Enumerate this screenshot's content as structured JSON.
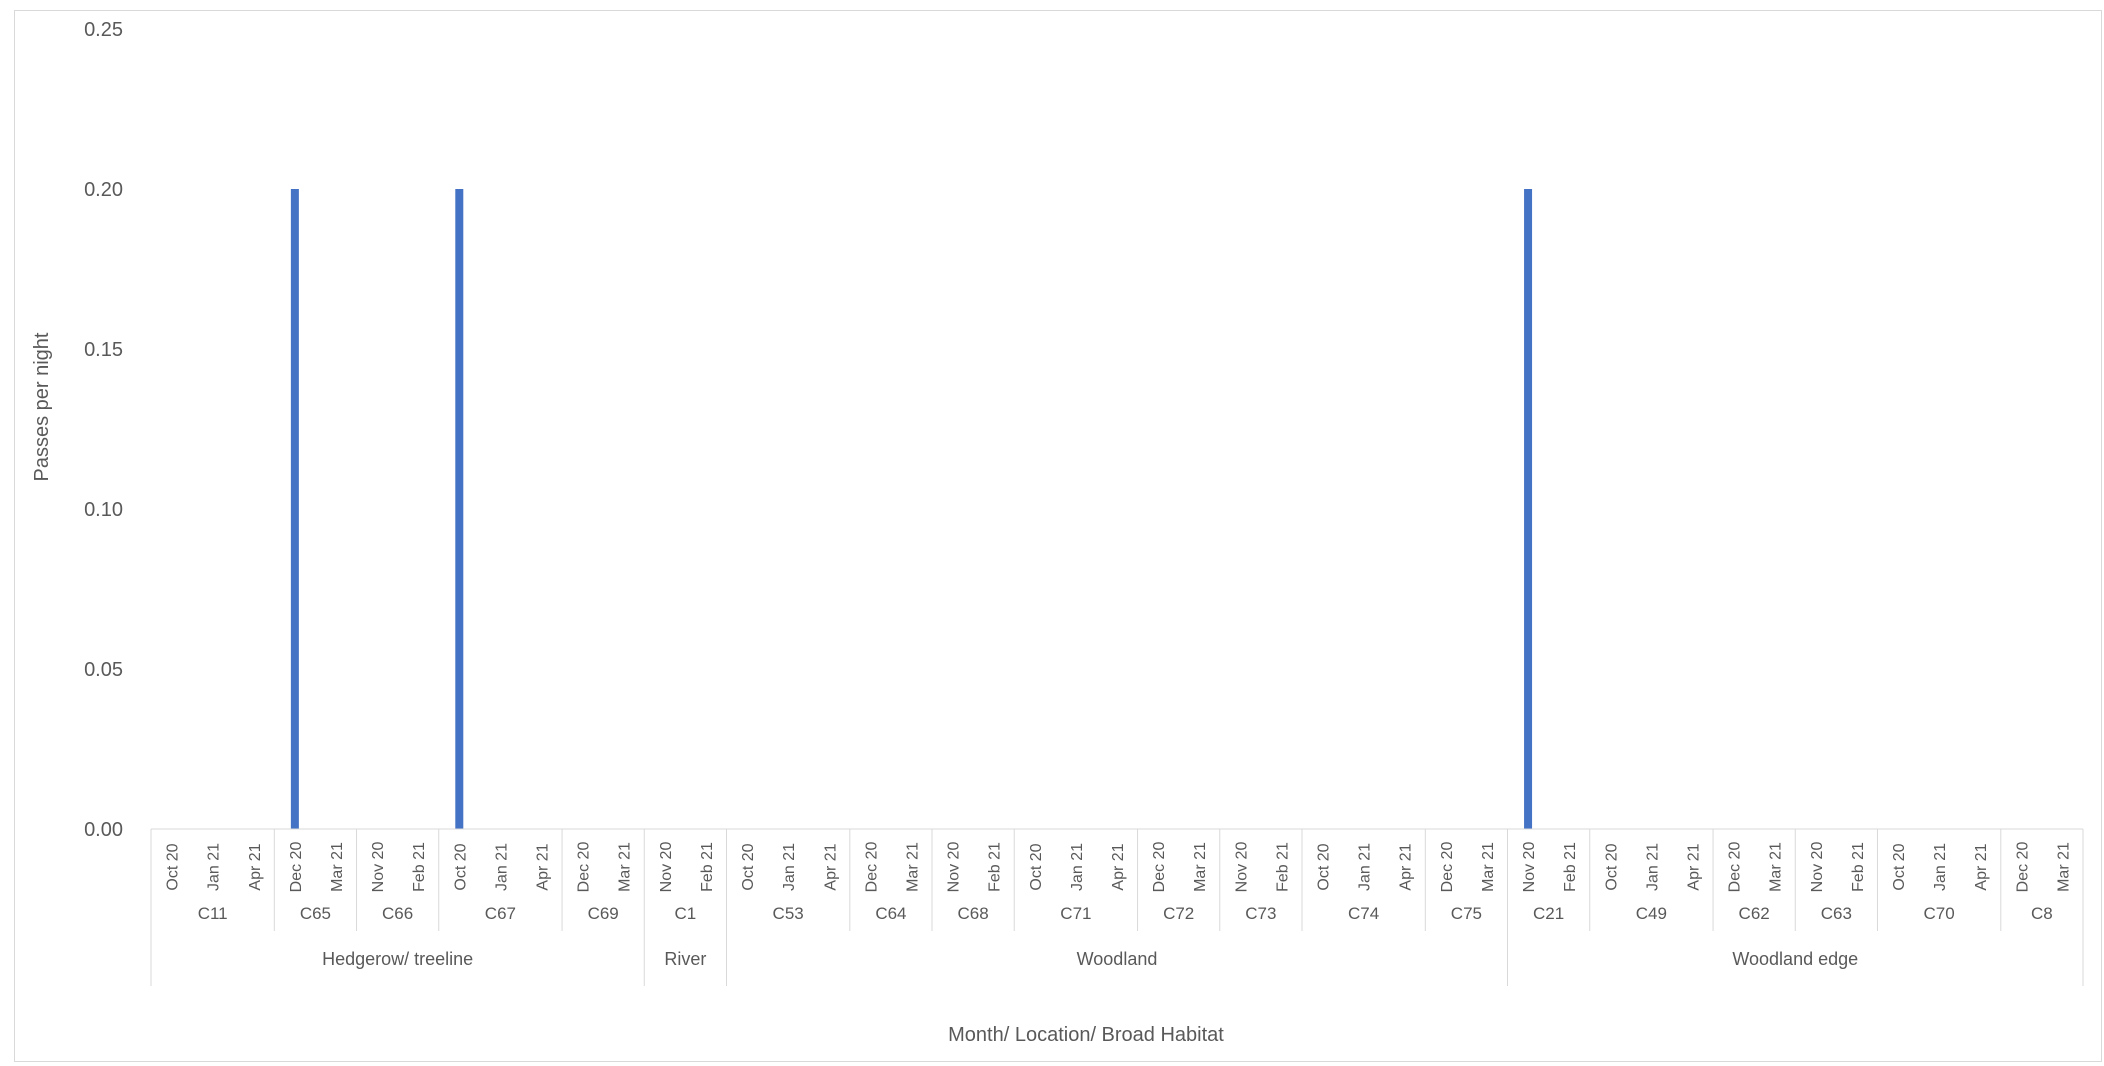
{
  "chart_data": {
    "type": "bar",
    "title": "",
    "ylabel": "Passes per night",
    "xlabel": "Month/ Location/ Broad Habitat",
    "ylim": [
      0,
      0.25
    ],
    "yticks": [
      "0.00",
      "0.05",
      "0.10",
      "0.15",
      "0.20",
      "0.25"
    ],
    "grid": false,
    "bar_color": "#4472c4",
    "months": [
      "Oct 20",
      "Jan 21",
      "Apr 21",
      "Dec 20",
      "Mar 21",
      "Nov 20",
      "Feb 21",
      "Oct 20",
      "Jan 21",
      "Apr 21",
      "Dec 20",
      "Mar 21",
      "Nov 20",
      "Feb 21",
      "Oct 20",
      "Jan 21",
      "Apr 21",
      "Dec 20",
      "Mar 21",
      "Nov 20",
      "Feb 21",
      "Oct 20",
      "Jan 21",
      "Apr 21",
      "Dec 20",
      "Mar 21",
      "Nov 20",
      "Feb 21",
      "Oct 20",
      "Jan 21",
      "Apr 21",
      "Dec 20",
      "Mar 21",
      "Nov 20",
      "Feb 21",
      "Oct 20",
      "Jan 21",
      "Apr 21",
      "Dec 20",
      "Mar 21",
      "Nov 20",
      "Feb 21",
      "Oct 20",
      "Jan 21",
      "Apr 21",
      "Dec 20",
      "Mar 21"
    ],
    "values": [
      0,
      0,
      0,
      0.2,
      0,
      0,
      0,
      0.2,
      0,
      0,
      0,
      0,
      0,
      0,
      0,
      0,
      0,
      0,
      0,
      0,
      0,
      0,
      0,
      0,
      0,
      0,
      0,
      0,
      0,
      0,
      0,
      0,
      0,
      0.2,
      0,
      0,
      0,
      0,
      0,
      0,
      0,
      0,
      0,
      0,
      0,
      0,
      0
    ],
    "locations": [
      {
        "label": "C11",
        "span": 3
      },
      {
        "label": "C65",
        "span": 2
      },
      {
        "label": "C66",
        "span": 2
      },
      {
        "label": "C67",
        "span": 3
      },
      {
        "label": "C69",
        "span": 2
      },
      {
        "label": "C1",
        "span": 2
      },
      {
        "label": "C53",
        "span": 3
      },
      {
        "label": "C64",
        "span": 2
      },
      {
        "label": "C68",
        "span": 2
      },
      {
        "label": "C71",
        "span": 3
      },
      {
        "label": "C72",
        "span": 2
      },
      {
        "label": "C73",
        "span": 2
      },
      {
        "label": "C74",
        "span": 3
      },
      {
        "label": "C75",
        "span": 2
      },
      {
        "label": "C21",
        "span": 2
      },
      {
        "label": "C49",
        "span": 3
      },
      {
        "label": "C62",
        "span": 2
      },
      {
        "label": "C63",
        "span": 2
      },
      {
        "label": "C70",
        "span": 3
      },
      {
        "label": "C8",
        "span": 2
      }
    ],
    "habitats": [
      {
        "label": "Hedgerow/ treeline",
        "span": 12
      },
      {
        "label": "River",
        "span": 2
      },
      {
        "label": "Woodland",
        "span": 19
      },
      {
        "label": "Woodland edge",
        "span": 14
      }
    ]
  }
}
